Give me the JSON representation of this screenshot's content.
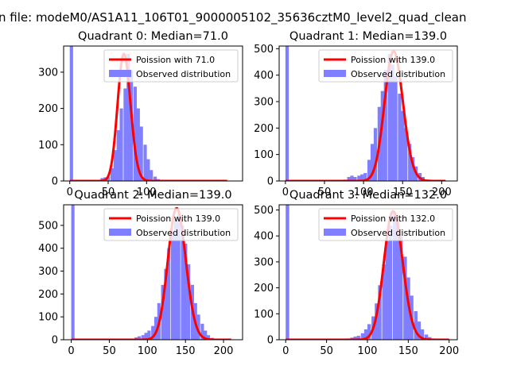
{
  "suptitle": "n file: modeM0/AS1A11_106T01_9000005102_35636cztM0_level2_quad_clean",
  "colors": {
    "poisson": "#ff0000",
    "hist": "#7f7fff",
    "axes": "#000000"
  },
  "chart_data": [
    {
      "type": "histogram",
      "title": "Quadrant 0: Median=71.0",
      "legend": {
        "placement": "upper-right",
        "entries": [
          "Poission with 71.0",
          "Observed distribution"
        ]
      },
      "xlim": [
        -8,
        225
      ],
      "ylim": [
        0,
        372
      ],
      "xticks": [
        0,
        50,
        100
      ],
      "xticklabels": [
        "0",
        "50",
        "100"
      ],
      "yticks": [
        0,
        100,
        200,
        300
      ],
      "yticklabels": [
        "0",
        "100",
        "200",
        "300"
      ],
      "bin_width": 4.3,
      "bins": [
        {
          "x": 0,
          "count": 372
        },
        {
          "x": 35,
          "count": 2
        },
        {
          "x": 40,
          "count": 8
        },
        {
          "x": 44,
          "count": 10
        },
        {
          "x": 48,
          "count": 12
        },
        {
          "x": 53,
          "count": 35
        },
        {
          "x": 57,
          "count": 85
        },
        {
          "x": 61,
          "count": 140
        },
        {
          "x": 65,
          "count": 200
        },
        {
          "x": 70,
          "count": 255
        },
        {
          "x": 74,
          "count": 350
        },
        {
          "x": 78,
          "count": 305
        },
        {
          "x": 83,
          "count": 260
        },
        {
          "x": 87,
          "count": 200
        },
        {
          "x": 91,
          "count": 150
        },
        {
          "x": 96,
          "count": 100
        },
        {
          "x": 100,
          "count": 60
        },
        {
          "x": 104,
          "count": 30
        },
        {
          "x": 109,
          "count": 12
        },
        {
          "x": 113,
          "count": 5
        }
      ],
      "poisson": {
        "mean": 71.0,
        "peak": 350,
        "x_range": [
          0,
          205
        ]
      }
    },
    {
      "type": "histogram",
      "title": "Quadrant 1: Median=139.0",
      "legend": {
        "placement": "upper-right",
        "entries": [
          "Poission with 139.0",
          "Observed distribution"
        ]
      },
      "xlim": [
        -8,
        220
      ],
      "ylim": [
        0,
        510
      ],
      "xticks": [
        0,
        50,
        100,
        150,
        200
      ],
      "xticklabels": [
        "0",
        "50",
        "100",
        "150",
        "200"
      ],
      "yticks": [
        0,
        100,
        200,
        300,
        400,
        500
      ],
      "yticklabels": [
        "0",
        "100",
        "200",
        "300",
        "400",
        "500"
      ],
      "bin_width": 4.3,
      "bins": [
        {
          "x": 0,
          "count": 510
        },
        {
          "x": 74,
          "count": 5
        },
        {
          "x": 79,
          "count": 15
        },
        {
          "x": 83,
          "count": 20
        },
        {
          "x": 87,
          "count": 15
        },
        {
          "x": 92,
          "count": 20
        },
        {
          "x": 96,
          "count": 25
        },
        {
          "x": 100,
          "count": 30
        },
        {
          "x": 105,
          "count": 80
        },
        {
          "x": 109,
          "count": 140
        },
        {
          "x": 113,
          "count": 200
        },
        {
          "x": 118,
          "count": 280
        },
        {
          "x": 122,
          "count": 340
        },
        {
          "x": 126,
          "count": 420
        },
        {
          "x": 131,
          "count": 480
        },
        {
          "x": 135,
          "count": 440
        },
        {
          "x": 139,
          "count": 395
        },
        {
          "x": 144,
          "count": 330
        },
        {
          "x": 148,
          "count": 265
        },
        {
          "x": 152,
          "count": 200
        },
        {
          "x": 157,
          "count": 140
        },
        {
          "x": 161,
          "count": 90
        },
        {
          "x": 165,
          "count": 55
        },
        {
          "x": 170,
          "count": 30
        },
        {
          "x": 174,
          "count": 15
        },
        {
          "x": 178,
          "count": 5
        }
      ],
      "poisson": {
        "mean": 139.0,
        "peak": 490,
        "x_range": [
          0,
          205
        ]
      }
    },
    {
      "type": "histogram",
      "title": "Quadrant 2: Median=139.0",
      "legend": {
        "placement": "upper-right",
        "entries": [
          "Poission with 139.0",
          "Observed distribution"
        ]
      },
      "xlim": [
        -10,
        225
      ],
      "ylim": [
        0,
        590
      ],
      "xticks": [
        0,
        50,
        100,
        150,
        200
      ],
      "xticklabels": [
        "0",
        "50",
        "100",
        "150",
        "200"
      ],
      "yticks": [
        0,
        100,
        200,
        300,
        400,
        500
      ],
      "yticklabels": [
        "0",
        "100",
        "200",
        "300",
        "400",
        "500"
      ],
      "bin_width": 4.3,
      "bins": [
        {
          "x": 0,
          "count": 590
        },
        {
          "x": 78,
          "count": 5
        },
        {
          "x": 83,
          "count": 10
        },
        {
          "x": 87,
          "count": 15
        },
        {
          "x": 92,
          "count": 20
        },
        {
          "x": 96,
          "count": 30
        },
        {
          "x": 100,
          "count": 40
        },
        {
          "x": 105,
          "count": 60
        },
        {
          "x": 109,
          "count": 100
        },
        {
          "x": 113,
          "count": 160
        },
        {
          "x": 118,
          "count": 240
        },
        {
          "x": 122,
          "count": 310
        },
        {
          "x": 126,
          "count": 400
        },
        {
          "x": 131,
          "count": 470
        },
        {
          "x": 135,
          "count": 520
        },
        {
          "x": 139,
          "count": 550
        },
        {
          "x": 144,
          "count": 500
        },
        {
          "x": 148,
          "count": 420
        },
        {
          "x": 152,
          "count": 330
        },
        {
          "x": 157,
          "count": 240
        },
        {
          "x": 161,
          "count": 160
        },
        {
          "x": 165,
          "count": 110
        },
        {
          "x": 170,
          "count": 70
        },
        {
          "x": 174,
          "count": 40
        },
        {
          "x": 178,
          "count": 20
        },
        {
          "x": 183,
          "count": 8
        }
      ],
      "poisson": {
        "mean": 139.0,
        "peak": 575,
        "x_range": [
          0,
          210
        ]
      }
    },
    {
      "type": "histogram",
      "title": "Quadrant 3: Median=132.0",
      "legend": {
        "placement": "upper-right",
        "entries": [
          "Poission with 132.0",
          "Observed distribution"
        ]
      },
      "xlim": [
        -8,
        210
      ],
      "ylim": [
        0,
        520
      ],
      "xticks": [
        0,
        50,
        100,
        150,
        200
      ],
      "xticklabels": [
        "0",
        "50",
        "100",
        "150",
        "200"
      ],
      "yticks": [
        0,
        100,
        200,
        300,
        400,
        500
      ],
      "yticklabels": [
        "0",
        "100",
        "200",
        "300",
        "400",
        "500"
      ],
      "bin_width": 4.3,
      "bins": [
        {
          "x": 0,
          "count": 520
        },
        {
          "x": 74,
          "count": 5
        },
        {
          "x": 79,
          "count": 8
        },
        {
          "x": 83,
          "count": 12
        },
        {
          "x": 87,
          "count": 15
        },
        {
          "x": 92,
          "count": 25
        },
        {
          "x": 96,
          "count": 40
        },
        {
          "x": 100,
          "count": 60
        },
        {
          "x": 105,
          "count": 90
        },
        {
          "x": 109,
          "count": 140
        },
        {
          "x": 113,
          "count": 210
        },
        {
          "x": 118,
          "count": 290
        },
        {
          "x": 122,
          "count": 380
        },
        {
          "x": 126,
          "count": 440
        },
        {
          "x": 131,
          "count": 490
        },
        {
          "x": 135,
          "count": 460
        },
        {
          "x": 139,
          "count": 400
        },
        {
          "x": 144,
          "count": 320
        },
        {
          "x": 148,
          "count": 240
        },
        {
          "x": 152,
          "count": 170
        },
        {
          "x": 157,
          "count": 110
        },
        {
          "x": 161,
          "count": 70
        },
        {
          "x": 165,
          "count": 40
        },
        {
          "x": 170,
          "count": 20
        },
        {
          "x": 174,
          "count": 10
        },
        {
          "x": 178,
          "count": 5
        }
      ],
      "poisson": {
        "mean": 132.0,
        "peak": 495,
        "x_range": [
          0,
          200
        ]
      }
    }
  ]
}
